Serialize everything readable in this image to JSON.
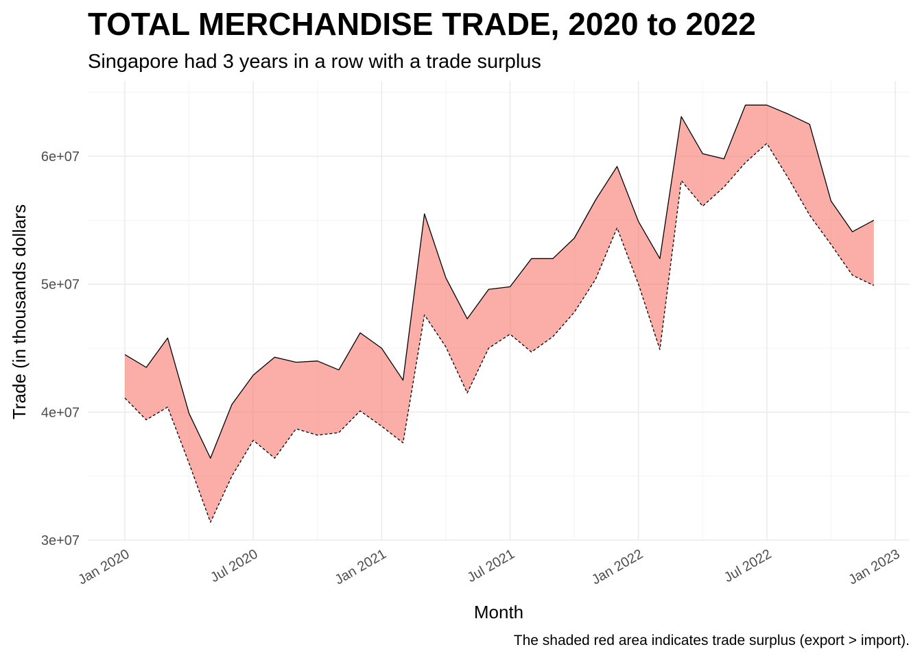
{
  "chart_data": {
    "type": "area",
    "title": "TOTAL MERCHANDISE TRADE, 2020 to 2022",
    "subtitle": "Singapore had 3 years in a row with a trade surplus",
    "xlabel": "Month",
    "ylabel": "Trade (in thousands dollars",
    "caption": "The shaded red area indicates trade surplus (export > import).",
    "x": [
      "2020-01",
      "2020-02",
      "2020-03",
      "2020-04",
      "2020-05",
      "2020-06",
      "2020-07",
      "2020-08",
      "2020-09",
      "2020-10",
      "2020-11",
      "2020-12",
      "2021-01",
      "2021-02",
      "2021-03",
      "2021-04",
      "2021-05",
      "2021-06",
      "2021-07",
      "2021-08",
      "2021-09",
      "2021-10",
      "2021-11",
      "2021-12",
      "2022-01",
      "2022-02",
      "2022-03",
      "2022-04",
      "2022-05",
      "2022-06",
      "2022-07",
      "2022-08",
      "2022-09",
      "2022-10",
      "2022-11",
      "2022-12"
    ],
    "series": [
      {
        "line": "solid",
        "values": [
          44500000,
          43500000,
          45800000,
          39900000,
          36400000,
          40600000,
          42900000,
          44300000,
          43900000,
          44000000,
          43300000,
          46200000,
          45000000,
          42500000,
          55500000,
          50500000,
          47300000,
          49600000,
          49800000,
          52000000,
          52000000,
          53600000,
          56600000,
          59200000,
          54900000,
          52000000,
          63100000,
          60200000,
          59800000,
          64000000,
          64000000,
          63300000,
          62500000,
          56500000,
          54100000,
          55000000
        ]
      },
      {
        "line": "dashed",
        "values": [
          41100000,
          39400000,
          40400000,
          36000000,
          31400000,
          35000000,
          37800000,
          36400000,
          38700000,
          38200000,
          38400000,
          40100000,
          38900000,
          37600000,
          47600000,
          45100000,
          41500000,
          45000000,
          46100000,
          44700000,
          45900000,
          47800000,
          50400000,
          54400000,
          50000000,
          44900000,
          58100000,
          56100000,
          57600000,
          59500000,
          61000000,
          58300000,
          55400000,
          53100000,
          50700000,
          49900000
        ]
      }
    ],
    "ylim": [
      30000000,
      65000000
    ],
    "y_ticks": [
      {
        "value": 30000000,
        "label": "3e+07"
      },
      {
        "value": 40000000,
        "label": "4e+07"
      },
      {
        "value": 50000000,
        "label": "5e+07"
      },
      {
        "value": 60000000,
        "label": "6e+07"
      }
    ],
    "x_ticks": [
      {
        "date": "2020-01",
        "label": "Jan 2020"
      },
      {
        "date": "2020-07",
        "label": "Jul 2020"
      },
      {
        "date": "2021-01",
        "label": "Jan 2021"
      },
      {
        "date": "2021-07",
        "label": "Jul 2021"
      },
      {
        "date": "2022-01",
        "label": "Jan 2022"
      },
      {
        "date": "2022-07",
        "label": "Jul 2022"
      },
      {
        "date": "2023-01",
        "label": "Jan 2023"
      }
    ],
    "fill_color": "#F8766D",
    "grid": true,
    "legend": "none"
  }
}
